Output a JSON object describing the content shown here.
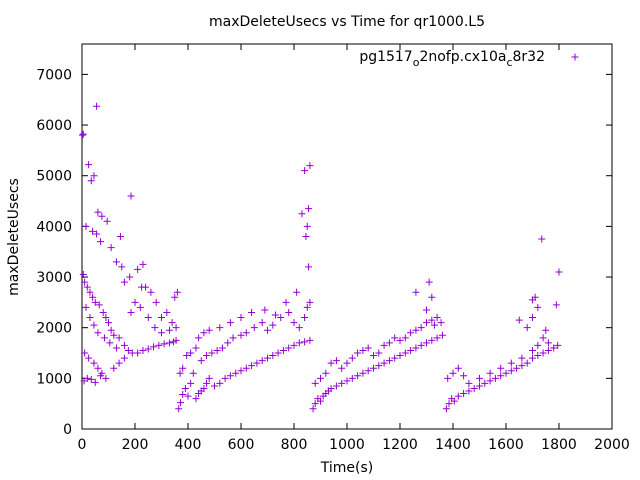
{
  "chart_data": {
    "type": "scatter",
    "title": "maxDeleteUsecs vs Time for qr1000.L5",
    "xlabel": "Time(s)",
    "ylabel": "maxDeleteUsecs",
    "xlim": [
      0,
      2000
    ],
    "ylim": [
      0,
      7600
    ],
    "x_ticks": [
      "0",
      "200",
      "400",
      "600",
      "800",
      "1000",
      "1200",
      "1400",
      "1600",
      "1800",
      "2000"
    ],
    "y_ticks": [
      "0",
      "1000",
      "2000",
      "3000",
      "4000",
      "5000",
      "6000",
      "7000"
    ],
    "legend_position": "top-right",
    "legend": {
      "label_main": "pg1517",
      "sub_1": "o",
      "label_mid": "2nofp.cx10a",
      "sub_2": "c",
      "label_end": "8r32"
    },
    "marker": "plus",
    "color": "#9400d3",
    "series": [
      {
        "name": "pg1517_o2nofp.cx10a_c8r32",
        "points": [
          [
            2,
            5800
          ],
          [
            5,
            5820
          ],
          [
            45,
            5000
          ],
          [
            55,
            6370
          ],
          [
            25,
            5220
          ],
          [
            35,
            4900
          ],
          [
            60,
            4280
          ],
          [
            75,
            4200
          ],
          [
            95,
            4100
          ],
          [
            145,
            3800
          ],
          [
            185,
            4600
          ],
          [
            210,
            3150
          ],
          [
            230,
            3250
          ],
          [
            15,
            4000
          ],
          [
            40,
            3900
          ],
          [
            55,
            3850
          ],
          [
            70,
            3700
          ],
          [
            110,
            3580
          ],
          [
            130,
            3300
          ],
          [
            150,
            3200
          ],
          [
            5,
            3050
          ],
          [
            10,
            2900
          ],
          [
            20,
            2800
          ],
          [
            30,
            2700
          ],
          [
            40,
            2600
          ],
          [
            50,
            2500
          ],
          [
            65,
            2450
          ],
          [
            80,
            2300
          ],
          [
            90,
            2200
          ],
          [
            100,
            2100
          ],
          [
            110,
            1950
          ],
          [
            120,
            1850
          ],
          [
            140,
            1800
          ],
          [
            160,
            1650
          ],
          [
            175,
            1550
          ],
          [
            15,
            2400
          ],
          [
            30,
            2200
          ],
          [
            45,
            2050
          ],
          [
            60,
            1900
          ],
          [
            85,
            1800
          ],
          [
            105,
            1700
          ],
          [
            130,
            1600
          ],
          [
            10,
            1500
          ],
          [
            25,
            1400
          ],
          [
            45,
            1300
          ],
          [
            60,
            1200
          ],
          [
            75,
            1100
          ],
          [
            90,
            1000
          ],
          [
            8,
            950
          ],
          [
            20,
            1000
          ],
          [
            35,
            980
          ],
          [
            50,
            920
          ],
          [
            70,
            1050
          ],
          [
            120,
            1200
          ],
          [
            140,
            1300
          ],
          [
            160,
            1400
          ],
          [
            190,
            1500
          ],
          [
            210,
            1500
          ],
          [
            230,
            1550
          ],
          [
            250,
            1580
          ],
          [
            270,
            1620
          ],
          [
            290,
            1650
          ],
          [
            310,
            1680
          ],
          [
            330,
            1700
          ],
          [
            345,
            1720
          ],
          [
            355,
            1750
          ],
          [
            185,
            2300
          ],
          [
            200,
            2500
          ],
          [
            220,
            2400
          ],
          [
            240,
            2800
          ],
          [
            260,
            2700
          ],
          [
            280,
            2500
          ],
          [
            300,
            2200
          ],
          [
            320,
            2300
          ],
          [
            340,
            2100
          ],
          [
            355,
            2000
          ],
          [
            160,
            2900
          ],
          [
            180,
            3000
          ],
          [
            225,
            2800
          ],
          [
            250,
            2200
          ],
          [
            275,
            2000
          ],
          [
            300,
            1900
          ],
          [
            330,
            1950
          ],
          [
            350,
            2600
          ],
          [
            360,
            2700
          ],
          [
            365,
            400
          ],
          [
            372,
            520
          ],
          [
            380,
            680
          ],
          [
            390,
            800
          ],
          [
            400,
            650
          ],
          [
            410,
            900
          ],
          [
            420,
            1100
          ],
          [
            430,
            600
          ],
          [
            440,
            700
          ],
          [
            450,
            750
          ],
          [
            460,
            800
          ],
          [
            470,
            900
          ],
          [
            480,
            1000
          ],
          [
            500,
            850
          ],
          [
            520,
            900
          ],
          [
            540,
            1000
          ],
          [
            560,
            1050
          ],
          [
            580,
            1100
          ],
          [
            600,
            1150
          ],
          [
            620,
            1200
          ],
          [
            640,
            1250
          ],
          [
            660,
            1300
          ],
          [
            680,
            1350
          ],
          [
            700,
            1400
          ],
          [
            720,
            1450
          ],
          [
            740,
            1500
          ],
          [
            760,
            1550
          ],
          [
            780,
            1600
          ],
          [
            800,
            1650
          ],
          [
            820,
            1700
          ],
          [
            840,
            1720
          ],
          [
            860,
            1750
          ],
          [
            370,
            1100
          ],
          [
            380,
            1200
          ],
          [
            395,
            1450
          ],
          [
            410,
            1500
          ],
          [
            430,
            1600
          ],
          [
            450,
            1350
          ],
          [
            470,
            1450
          ],
          [
            490,
            1500
          ],
          [
            510,
            1550
          ],
          [
            530,
            1600
          ],
          [
            550,
            1700
          ],
          [
            570,
            1800
          ],
          [
            600,
            1850
          ],
          [
            620,
            1900
          ],
          [
            650,
            2000
          ],
          [
            680,
            2100
          ],
          [
            700,
            1950
          ],
          [
            720,
            2050
          ],
          [
            750,
            2200
          ],
          [
            780,
            2300
          ],
          [
            800,
            2100
          ],
          [
            820,
            2000
          ],
          [
            840,
            2200
          ],
          [
            850,
            2400
          ],
          [
            860,
            2500
          ],
          [
            440,
            1800
          ],
          [
            460,
            1900
          ],
          [
            480,
            1950
          ],
          [
            520,
            2000
          ],
          [
            560,
            2100
          ],
          [
            600,
            2200
          ],
          [
            640,
            2300
          ],
          [
            690,
            2350
          ],
          [
            730,
            2250
          ],
          [
            770,
            2500
          ],
          [
            810,
            2700
          ],
          [
            830,
            4250
          ],
          [
            840,
            5100
          ],
          [
            845,
            3800
          ],
          [
            850,
            4000
          ],
          [
            860,
            5200
          ],
          [
            855,
            4350
          ],
          [
            855,
            3200
          ],
          [
            872,
            400
          ],
          [
            880,
            500
          ],
          [
            890,
            600
          ],
          [
            900,
            550
          ],
          [
            910,
            650
          ],
          [
            920,
            700
          ],
          [
            930,
            750
          ],
          [
            940,
            800
          ],
          [
            960,
            850
          ],
          [
            980,
            900
          ],
          [
            1000,
            950
          ],
          [
            1020,
            1000
          ],
          [
            1040,
            1050
          ],
          [
            1060,
            1100
          ],
          [
            1080,
            1150
          ],
          [
            1100,
            1200
          ],
          [
            1120,
            1250
          ],
          [
            1140,
            1300
          ],
          [
            1160,
            1350
          ],
          [
            1180,
            1400
          ],
          [
            1200,
            1450
          ],
          [
            1220,
            1500
          ],
          [
            1240,
            1550
          ],
          [
            1260,
            1600
          ],
          [
            1280,
            1650
          ],
          [
            1300,
            1700
          ],
          [
            1320,
            1750
          ],
          [
            1340,
            1800
          ],
          [
            1360,
            1850
          ],
          [
            880,
            900
          ],
          [
            900,
            1000
          ],
          [
            920,
            1100
          ],
          [
            940,
            1300
          ],
          [
            960,
            1350
          ],
          [
            980,
            1200
          ],
          [
            1000,
            1300
          ],
          [
            1020,
            1400
          ],
          [
            1040,
            1500
          ],
          [
            1060,
            1550
          ],
          [
            1080,
            1600
          ],
          [
            1100,
            1450
          ],
          [
            1120,
            1500
          ],
          [
            1140,
            1650
          ],
          [
            1160,
            1700
          ],
          [
            1180,
            1800
          ],
          [
            1200,
            1750
          ],
          [
            1220,
            1800
          ],
          [
            1240,
            1900
          ],
          [
            1260,
            1950
          ],
          [
            1280,
            2000
          ],
          [
            1300,
            2100
          ],
          [
            1320,
            2150
          ],
          [
            1340,
            2200
          ],
          [
            1355,
            2100
          ],
          [
            1310,
            2900
          ],
          [
            1320,
            2600
          ],
          [
            1260,
            2700
          ],
          [
            1300,
            2350
          ],
          [
            1330,
            2050
          ],
          [
            1375,
            400
          ],
          [
            1385,
            500
          ],
          [
            1395,
            600
          ],
          [
            1405,
            550
          ],
          [
            1420,
            650
          ],
          [
            1440,
            700
          ],
          [
            1460,
            750
          ],
          [
            1480,
            800
          ],
          [
            1500,
            850
          ],
          [
            1520,
            900
          ],
          [
            1540,
            950
          ],
          [
            1560,
            1000
          ],
          [
            1580,
            1050
          ],
          [
            1600,
            1100
          ],
          [
            1620,
            1150
          ],
          [
            1640,
            1200
          ],
          [
            1660,
            1250
          ],
          [
            1680,
            1300
          ],
          [
            1700,
            1400
          ],
          [
            1720,
            1450
          ],
          [
            1740,
            1500
          ],
          [
            1760,
            1550
          ],
          [
            1780,
            1600
          ],
          [
            1795,
            1650
          ],
          [
            1380,
            1000
          ],
          [
            1400,
            1100
          ],
          [
            1420,
            1200
          ],
          [
            1440,
            1050
          ],
          [
            1460,
            900
          ],
          [
            1500,
            1000
          ],
          [
            1540,
            1100
          ],
          [
            1580,
            1200
          ],
          [
            1620,
            1300
          ],
          [
            1660,
            1400
          ],
          [
            1700,
            1550
          ],
          [
            1720,
            1650
          ],
          [
            1740,
            1800
          ],
          [
            1760,
            1700
          ],
          [
            1700,
            2550
          ],
          [
            1710,
            2600
          ],
          [
            1720,
            2400
          ],
          [
            1735,
            3750
          ],
          [
            1790,
            2450
          ],
          [
            1800,
            3100
          ],
          [
            1650,
            2150
          ],
          [
            1680,
            2000
          ],
          [
            1700,
            2200
          ],
          [
            1750,
            1950
          ]
        ]
      }
    ]
  }
}
